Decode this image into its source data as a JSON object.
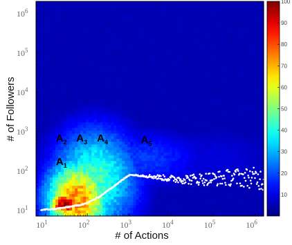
{
  "chart_data": {
    "type": "heatmap",
    "title": "",
    "xlabel": "# of Actions",
    "ylabel": "# of Followers",
    "xscale": "log",
    "yscale": "log",
    "xlim": [
      6,
      1600000
    ],
    "ylim": [
      7,
      2000000
    ],
    "x_ticks": [
      {
        "base": "10",
        "exp": "1",
        "value": 10
      },
      {
        "base": "10",
        "exp": "2",
        "value": 100
      },
      {
        "base": "10",
        "exp": "3",
        "value": 1000
      },
      {
        "base": "10",
        "exp": "4",
        "value": 10000
      },
      {
        "base": "10",
        "exp": "5",
        "value": 100000
      },
      {
        "base": "10",
        "exp": "6",
        "value": 1000000
      }
    ],
    "y_ticks": [
      {
        "base": "10",
        "exp": "1",
        "value": 10
      },
      {
        "base": "10",
        "exp": "2",
        "value": 100
      },
      {
        "base": "10",
        "exp": "3",
        "value": 1000
      },
      {
        "base": "10",
        "exp": "4",
        "value": 10000
      },
      {
        "base": "10",
        "exp": "5",
        "value": 100000
      },
      {
        "base": "10",
        "exp": "6",
        "value": 1000000
      }
    ],
    "colorbar": {
      "min": 0,
      "max": 100,
      "ticks": [
        "10",
        "20",
        "30",
        "40",
        "50",
        "60",
        "70",
        "80",
        "90",
        "100"
      ],
      "colormap": "jet"
    },
    "density_blobs": [
      {
        "x": 30,
        "y": 14,
        "sx": 0.28,
        "sy": 0.22,
        "value": 100
      },
      {
        "x": 60,
        "y": 18,
        "sx": 0.55,
        "sy": 0.75,
        "value": 75
      },
      {
        "x": 150,
        "y": 60,
        "sx": 0.75,
        "sy": 0.95,
        "value": 45
      },
      {
        "x": 2000,
        "y": 200,
        "sx": 1.15,
        "sy": 0.55,
        "value": 18
      },
      {
        "x": 100000,
        "y": 200,
        "sx": 1.4,
        "sy": 0.7,
        "value": 9
      }
    ],
    "background_value": 5,
    "median_trend": [
      [
        8,
        10
      ],
      [
        15,
        10.5
      ],
      [
        30,
        11.5
      ],
      [
        60,
        13
      ],
      [
        100,
        15
      ],
      [
        200,
        22
      ],
      [
        400,
        38
      ],
      [
        800,
        65
      ],
      [
        1000,
        78
      ],
      [
        2000,
        75
      ],
      [
        5000,
        68
      ],
      [
        10000,
        62
      ],
      [
        30000,
        60
      ],
      [
        100000,
        62
      ],
      [
        300000,
        68
      ],
      [
        1000000,
        65
      ],
      [
        1600000,
        58
      ]
    ],
    "regions": [
      {
        "letter": "A",
        "sub": "1",
        "x": 18,
        "y": 140
      },
      {
        "letter": "A",
        "sub": "2",
        "x": 18,
        "y": 550
      },
      {
        "letter": "A",
        "sub": "3",
        "x": 55,
        "y": 550
      },
      {
        "letter": "A",
        "sub": "4",
        "x": 170,
        "y": 550
      },
      {
        "letter": "A",
        "sub": "5",
        "x": 1900,
        "y": 500
      }
    ]
  }
}
